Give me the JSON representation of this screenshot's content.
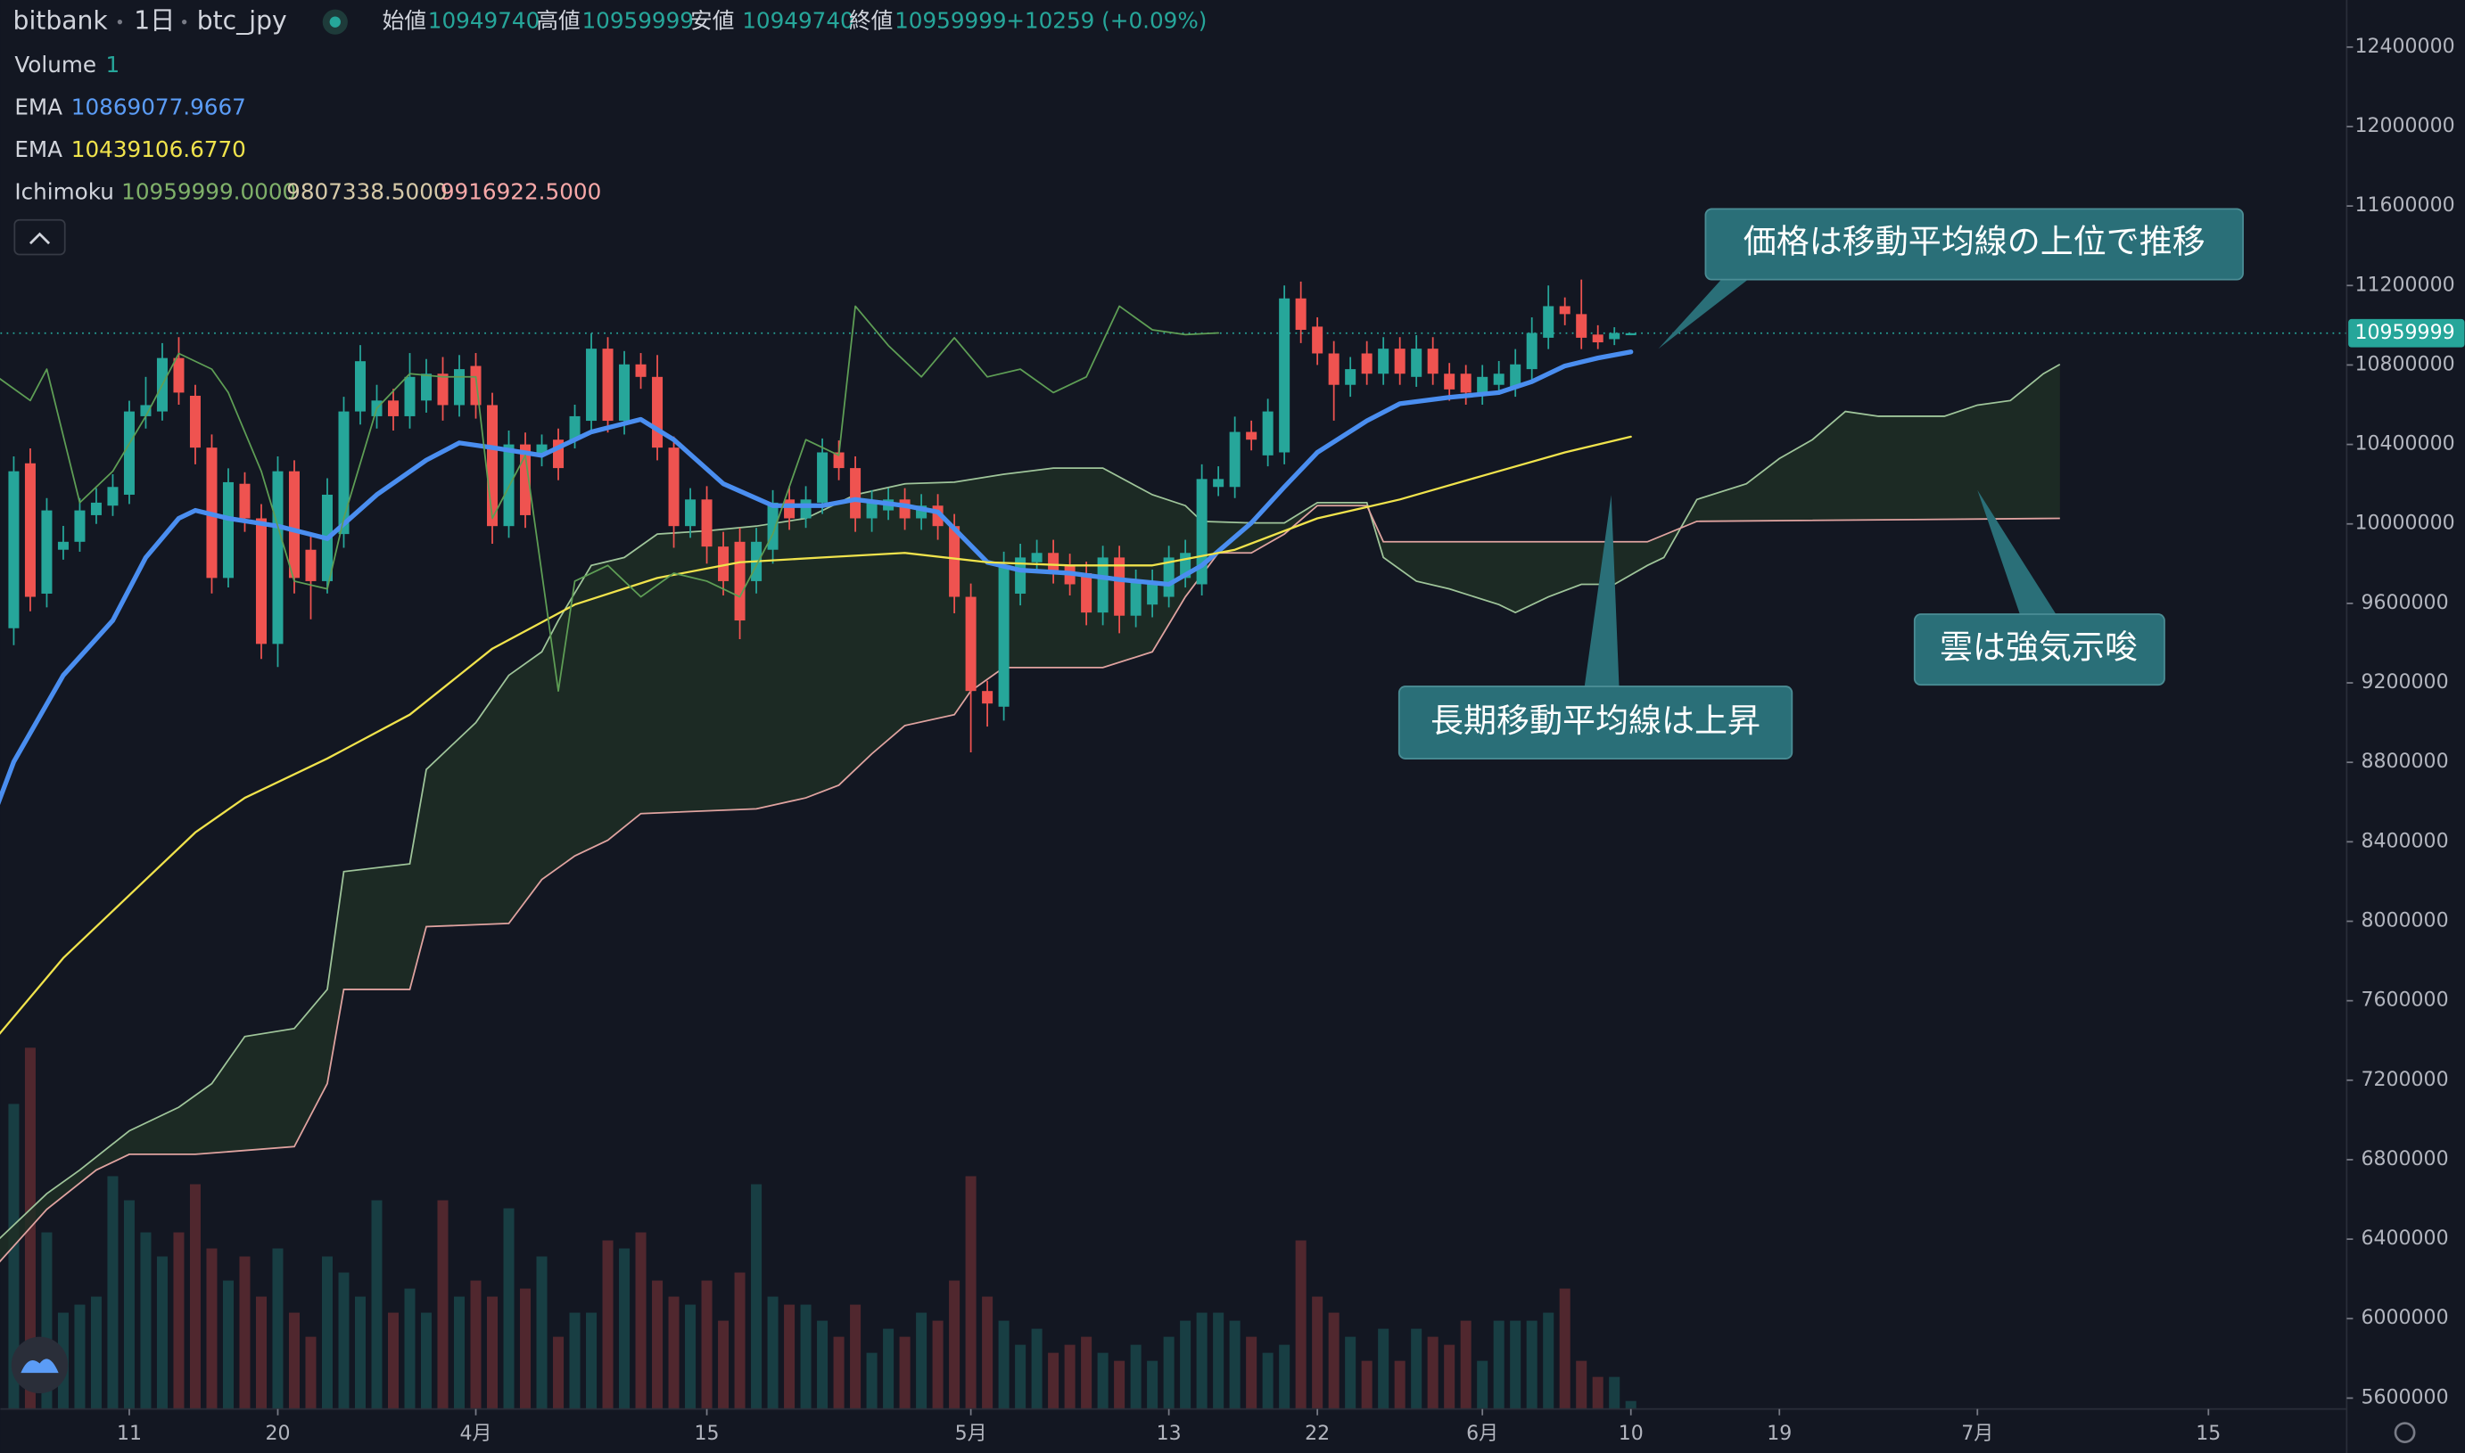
{
  "chart_data": {
    "type": "candlestick",
    "header": {
      "exchange": "bitbank",
      "interval": "1日",
      "symbol": "btc_jpy",
      "ohlc": [
        {
          "label": "始値",
          "value": "10949740"
        },
        {
          "label": "高値",
          "value": "10959999"
        },
        {
          "label": "安値",
          "value": "10949740"
        },
        {
          "label": "終値",
          "value": "10959999"
        }
      ],
      "change": "+10259 (+0.09%)"
    },
    "indicators": [
      {
        "name": "Volume",
        "values": [
          "1"
        ]
      },
      {
        "name": "EMA",
        "values": [
          "10869077.9667"
        ]
      },
      {
        "name": "EMA",
        "values": [
          "10439106.6770"
        ]
      },
      {
        "name": "Ichimoku",
        "values": [
          "10959999.0000",
          "9807338.5000",
          "9916922.5000"
        ]
      }
    ],
    "annotations": [
      "価格は移動平均線の上位で推移",
      "長期移動平均線は上昇",
      "雲は強気示唆"
    ],
    "up_color": "#26a69a",
    "down_color": "#ef5350",
    "last_price": 10959999,
    "x": [
      "03-04",
      "03-05",
      "03-06",
      "03-07",
      "03-08",
      "03-09",
      "03-10",
      "03-11",
      "03-12",
      "03-13",
      "03-14",
      "03-15",
      "03-16",
      "03-17",
      "03-18",
      "03-19",
      "03-20",
      "03-21",
      "03-22",
      "03-23",
      "03-24",
      "03-25",
      "03-26",
      "03-27",
      "03-28",
      "03-29",
      "03-30",
      "03-31",
      "04-01",
      "04-02",
      "04-03",
      "04-04",
      "04-05",
      "04-06",
      "04-07",
      "04-08",
      "04-09",
      "04-10",
      "04-11",
      "04-12",
      "04-13",
      "04-14",
      "04-15",
      "04-16",
      "04-17",
      "04-18",
      "04-19",
      "04-20",
      "04-21",
      "04-22",
      "04-23",
      "04-24",
      "04-25",
      "04-26",
      "04-27",
      "04-28",
      "04-29",
      "04-30",
      "05-01",
      "05-02",
      "05-03",
      "05-04",
      "05-05",
      "05-06",
      "05-07",
      "05-08",
      "05-09",
      "05-10",
      "05-11",
      "05-12",
      "05-13",
      "05-14",
      "05-15",
      "05-16",
      "05-17",
      "05-18",
      "05-19",
      "05-20",
      "05-21",
      "05-22",
      "05-23",
      "05-24",
      "05-25",
      "05-26",
      "05-27",
      "05-28",
      "05-29",
      "05-30",
      "05-31",
      "06-01",
      "06-02",
      "06-03",
      "06-04",
      "06-05",
      "06-06",
      "06-07",
      "06-08",
      "06-09",
      "06-10"
    ],
    "open": [
      9475000,
      10305000,
      9649000,
      9870000,
      9910000,
      10044000,
      10092000,
      10147000,
      10542000,
      10566000,
      10835000,
      10645000,
      10384000,
      9728000,
      10202000,
      10028000,
      9396000,
      10265000,
      9870000,
      9712000,
      9949000,
      10566000,
      10542000,
      10621000,
      10542000,
      10621000,
      10756000,
      10598000,
      10795000,
      10598000,
      9989000,
      10400000,
      10345000,
      10424000,
      10424000,
      10519000,
      10882000,
      10519000,
      10803000,
      10740000,
      10384000,
      9989000,
      10123000,
      9886000,
      9910000,
      9712000,
      9870000,
      10123000,
      10028000,
      10107000,
      10360000,
      10281000,
      10028000,
      10068000,
      10123000,
      10028000,
      10092000,
      9989000,
      9633000,
      9159000,
      9080000,
      9649000,
      9807000,
      9854000,
      9791000,
      9752000,
      9554000,
      9831000,
      9538000,
      9594000,
      9633000,
      9728000,
      9696000,
      10186000,
      10186000,
      10463000,
      10345000,
      10360000,
      11135000,
      10993000,
      10858000,
      10700000,
      10858000,
      10756000,
      10882000,
      10740000,
      10882000,
      10756000,
      10756000,
      10661000,
      10700000,
      10692000,
      10779000,
      10937000,
      11096000,
      11056000,
      10953000,
      10930000,
      10949740
    ],
    "high": [
      10340000,
      10380000,
      10130000,
      9990000,
      10130000,
      10180000,
      10250000,
      10620000,
      10740000,
      10910000,
      10940000,
      10700000,
      10450000,
      10280000,
      10260000,
      10100000,
      10340000,
      10320000,
      9950000,
      10230000,
      10640000,
      10900000,
      10700000,
      10680000,
      10860000,
      10830000,
      10840000,
      10850000,
      10860000,
      10660000,
      10470000,
      10460000,
      10450000,
      10480000,
      10600000,
      10960000,
      10940000,
      10870000,
      10860000,
      10850000,
      10440000,
      10180000,
      10190000,
      9960000,
      9980000,
      9980000,
      10170000,
      10190000,
      10190000,
      10430000,
      10420000,
      10340000,
      10170000,
      10180000,
      10180000,
      10150000,
      10150000,
      10050000,
      9700000,
      9210000,
      9860000,
      9900000,
      9920000,
      9920000,
      9850000,
      9810000,
      9890000,
      9890000,
      9770000,
      9770000,
      9890000,
      9920000,
      10300000,
      10290000,
      10540000,
      10520000,
      10630000,
      11200000,
      11220000,
      11040000,
      10920000,
      10840000,
      10920000,
      10940000,
      10940000,
      10950000,
      10940000,
      10810000,
      10800000,
      10800000,
      10820000,
      10880000,
      11040000,
      11200000,
      11140000,
      11230000,
      11000000,
      10990000,
      10959999
    ],
    "low": [
      9390000,
      9560000,
      9580000,
      9820000,
      9860000,
      10000000,
      10040000,
      10100000,
      10480000,
      10520000,
      10600000,
      10300000,
      9650000,
      9680000,
      9960000,
      9320000,
      9280000,
      9650000,
      9520000,
      9650000,
      9880000,
      10500000,
      10480000,
      10470000,
      10480000,
      10560000,
      10520000,
      10540000,
      10530000,
      9900000,
      9930000,
      9980000,
      10290000,
      10220000,
      10380000,
      10460000,
      10460000,
      10450000,
      10680000,
      10320000,
      9880000,
      9930000,
      9800000,
      9640000,
      9420000,
      9650000,
      9800000,
      9970000,
      9980000,
      10050000,
      10220000,
      9960000,
      9960000,
      10020000,
      9970000,
      9970000,
      9920000,
      9550000,
      8850000,
      8980000,
      9010000,
      9590000,
      9760000,
      9700000,
      9640000,
      9490000,
      9490000,
      9450000,
      9480000,
      9530000,
      9580000,
      9680000,
      9640000,
      10140000,
      10130000,
      10370000,
      10290000,
      10300000,
      10910000,
      10800000,
      10520000,
      10640000,
      10700000,
      10700000,
      10700000,
      10690000,
      10700000,
      10620000,
      10600000,
      10600000,
      10650000,
      10640000,
      10720000,
      10880000,
      11000000,
      10880000,
      10880000,
      10900000,
      10949740
    ],
    "close": [
      10265000,
      9633000,
      10068000,
      9910000,
      10068000,
      10107000,
      10186000,
      10566000,
      10598000,
      10835000,
      10661000,
      10384000,
      9728000,
      10210000,
      10028000,
      9396000,
      10265000,
      9728000,
      9712000,
      10147000,
      10566000,
      10819000,
      10621000,
      10542000,
      10740000,
      10756000,
      10598000,
      10779000,
      10598000,
      9989000,
      10400000,
      10044000,
      10400000,
      10281000,
      10542000,
      10882000,
      10519000,
      10803000,
      10740000,
      10384000,
      9989000,
      10123000,
      9886000,
      9712000,
      9514000,
      9910000,
      10107000,
      10028000,
      10123000,
      10360000,
      10281000,
      10028000,
      10107000,
      10123000,
      10028000,
      10092000,
      9989000,
      9633000,
      9159000,
      9096000,
      9791000,
      9831000,
      9854000,
      9752000,
      9696000,
      9554000,
      9831000,
      9538000,
      9712000,
      9712000,
      9831000,
      9854000,
      10226000,
      10226000,
      10463000,
      10424000,
      10566000,
      11135000,
      10977000,
      10858000,
      10700000,
      10779000,
      10756000,
      10882000,
      10756000,
      10882000,
      10756000,
      10677000,
      10661000,
      10740000,
      10756000,
      10803000,
      10961000,
      11096000,
      11056000,
      10937000,
      10914000,
      10961000,
      10959999
    ],
    "volume": [
      190,
      225,
      110,
      60,
      65,
      70,
      145,
      130,
      110,
      95,
      110,
      140,
      100,
      80,
      95,
      70,
      100,
      60,
      45,
      95,
      85,
      70,
      130,
      60,
      75,
      60,
      130,
      70,
      80,
      70,
      125,
      75,
      95,
      45,
      60,
      60,
      105,
      100,
      110,
      80,
      70,
      65,
      80,
      55,
      85,
      140,
      70,
      65,
      65,
      55,
      45,
      65,
      35,
      50,
      45,
      60,
      55,
      80,
      145,
      70,
      55,
      40,
      50,
      35,
      40,
      45,
      35,
      30,
      40,
      30,
      45,
      55,
      60,
      60,
      55,
      45,
      35,
      40,
      105,
      70,
      60,
      45,
      30,
      50,
      30,
      50,
      45,
      40,
      55,
      30,
      55,
      55,
      55,
      60,
      75,
      30,
      20,
      20,
      5
    ],
    "lines": [
      {
        "color": "#4a8ef0",
        "width": 3,
        "x": [
          "03-03",
          "03-04",
          "03-07",
          "03-10",
          "03-12",
          "03-14",
          "03-15",
          "03-17",
          "03-20",
          "03-23",
          "03-26",
          "03-29",
          "03-31",
          "04-02",
          "04-05",
          "04-08",
          "04-11",
          "04-13",
          "04-16",
          "04-19",
          "04-22",
          "04-24",
          "04-27",
          "04-29",
          "05-02",
          "05-04",
          "05-07",
          "05-10",
          "05-13",
          "05-15",
          "05-18",
          "05-20",
          "05-22",
          "05-25",
          "05-27",
          "05-30",
          "06-02",
          "06-04",
          "06-06",
          "06-08",
          "06-10"
        ],
        "values": [
          8582000,
          8803000,
          9238000,
          9514000,
          9831000,
          10028000,
          10068000,
          10028000,
          9989000,
          9926000,
          10147000,
          10321000,
          10408000,
          10384000,
          10345000,
          10463000,
          10526000,
          10424000,
          10202000,
          10092000,
          10092000,
          10123000,
          10092000,
          10060000,
          9807000,
          9767000,
          9752000,
          9720000,
          9696000,
          9791000,
          10005000,
          10186000,
          10360000,
          10519000,
          10605000,
          10637000,
          10661000,
          10716000,
          10795000,
          10835000,
          10866000
        ]
      },
      {
        "color": "#f0e34c",
        "width": 1.3,
        "x": [
          "03-03",
          "03-07",
          "03-12",
          "03-15",
          "03-18",
          "03-23",
          "03-28",
          "04-02",
          "04-07",
          "04-12",
          "04-17",
          "04-22",
          "04-27",
          "05-02",
          "05-07",
          "05-12",
          "05-17",
          "05-22",
          "05-27",
          "06-01",
          "06-06",
          "06-10"
        ],
        "values": [
          7420000,
          7815000,
          8210000,
          8447000,
          8621000,
          8819000,
          9040000,
          9372000,
          9594000,
          9728000,
          9807000,
          9831000,
          9854000,
          9807000,
          9791000,
          9791000,
          9870000,
          10028000,
          10123000,
          10242000,
          10360000,
          10439000
        ]
      },
      {
        "color": "#5e9e55",
        "width": 1,
        "x": [
          "03-03",
          "03-05",
          "03-06",
          "03-08",
          "03-10",
          "03-12",
          "03-14",
          "03-16",
          "03-17",
          "03-19",
          "03-21",
          "03-23",
          "03-24",
          "03-26",
          "03-28",
          "03-30",
          "04-01",
          "04-02",
          "04-04",
          "04-06",
          "04-07",
          "04-09",
          "04-11",
          "04-13",
          "04-15",
          "04-17",
          "04-19",
          "04-21",
          "04-23",
          "04-24",
          "04-26",
          "04-28",
          "04-30",
          "05-02",
          "05-04",
          "05-06",
          "05-08",
          "05-10",
          "05-12",
          "05-14",
          "05-16"
        ],
        "values": [
          10740000,
          10621000,
          10779000,
          10107000,
          10265000,
          10542000,
          10858000,
          10779000,
          10661000,
          10265000,
          9712000,
          9673000,
          10028000,
          10582000,
          10756000,
          10740000,
          10740000,
          10028000,
          10345000,
          9159000,
          9712000,
          9791000,
          9633000,
          9752000,
          9712000,
          9633000,
          9949000,
          10424000,
          10345000,
          11096000,
          10898000,
          10740000,
          10937000,
          10740000,
          10779000,
          10661000,
          10740000,
          11096000,
          10977000,
          10953000,
          10961000
        ]
      }
    ],
    "cloud": {
      "fill": "#1f2e25",
      "span_a": {
        "color": "#9fc59a",
        "x": [
          "03-03",
          "03-06",
          "03-08",
          "03-11",
          "03-14",
          "03-16",
          "03-18",
          "03-21",
          "03-23",
          "03-24",
          "03-28",
          "03-29",
          "04-01",
          "04-03",
          "04-05",
          "04-06",
          "04-08",
          "04-10",
          "04-12",
          "04-15",
          "04-18",
          "04-21",
          "04-24",
          "04-27",
          "04-30",
          "05-03",
          "05-06",
          "05-09",
          "05-12",
          "05-14",
          "05-15",
          "05-18",
          "05-20",
          "05-22",
          "05-25",
          "05-26",
          "05-28",
          "05-30",
          "06-02",
          "06-03",
          "06-05",
          "06-07",
          "06-09",
          "06-11",
          "06-12",
          "06-14",
          "06-17",
          "06-19",
          "06-21",
          "06-23",
          "06-25",
          "06-29",
          "07-01",
          "07-03",
          "07-05",
          "07-06"
        ],
        "values": [
          6392000,
          6629000,
          6748000,
          6945000,
          7064000,
          7183000,
          7420000,
          7460000,
          7657000,
          8250000,
          8289000,
          8764000,
          9000000,
          9238000,
          9356000,
          9514000,
          9791000,
          9831000,
          9949000,
          9965000,
          9989000,
          10028000,
          10147000,
          10202000,
          10210000,
          10250000,
          10281000,
          10281000,
          10147000,
          10092000,
          10013000,
          10005000,
          10005000,
          10107000,
          10107000,
          9831000,
          9712000,
          9673000,
          9594000,
          9554000,
          9633000,
          9696000,
          9696000,
          9791000,
          9831000,
          10123000,
          10202000,
          10329000,
          10424000,
          10566000,
          10542000,
          10542000,
          10598000,
          10621000,
          10756000,
          10803000
        ]
      },
      "span_b": {
        "color": "#e0a3a0",
        "x": [
          "03-03",
          "03-06",
          "03-09",
          "03-11",
          "03-15",
          "03-21",
          "03-23",
          "03-24",
          "03-28",
          "03-29",
          "04-03",
          "04-05",
          "04-07",
          "04-09",
          "04-11",
          "04-18",
          "04-21",
          "04-23",
          "04-25",
          "04-27",
          "04-30",
          "05-01",
          "05-03",
          "05-09",
          "05-12",
          "05-14",
          "05-16",
          "05-18",
          "05-20",
          "05-22",
          "05-25",
          "05-26",
          "06-11",
          "06-14",
          "07-06"
        ],
        "values": [
          6273000,
          6550000,
          6748000,
          6827000,
          6827000,
          6866000,
          7183000,
          7657000,
          7657000,
          7973000,
          7989000,
          8210000,
          8329000,
          8408000,
          8542000,
          8566000,
          8621000,
          8685000,
          8843000,
          8985000,
          9040000,
          9159000,
          9277000,
          9277000,
          9356000,
          9633000,
          9854000,
          9854000,
          9949000,
          10092000,
          10092000,
          9910000,
          9910000,
          10013000,
          10028000
        ]
      }
    },
    "xlim": [
      "03-03",
      "07-23"
    ],
    "ylim": [
      5545000,
      12637000
    ],
    "yticks": [
      5600000,
      6000000,
      6400000,
      6800000,
      7200000,
      7600000,
      8000000,
      8400000,
      8800000,
      9200000,
      9600000,
      10000000,
      10400000,
      10800000,
      11200000,
      11600000,
      12000000,
      12400000
    ],
    "xticks": [
      {
        "value": "03-11",
        "label": "11"
      },
      {
        "value": "03-20",
        "label": "20"
      },
      {
        "value": "04-01",
        "label": "4月"
      },
      {
        "value": "04-15",
        "label": "15"
      },
      {
        "value": "05-01",
        "label": "5月"
      },
      {
        "value": "05-13",
        "label": "13"
      },
      {
        "value": "05-22",
        "label": "22"
      },
      {
        "value": "06-01",
        "label": "6月"
      },
      {
        "value": "06-10",
        "label": "10"
      },
      {
        "value": "06-19",
        "label": "19"
      },
      {
        "value": "07-01",
        "label": "7月"
      },
      {
        "value": "07-15",
        "label": "15"
      }
    ],
    "grid": false
  }
}
